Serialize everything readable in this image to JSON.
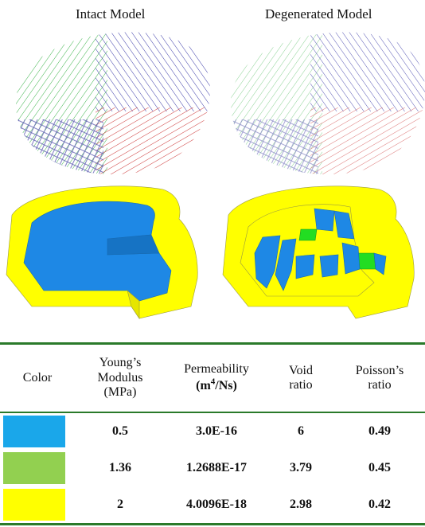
{
  "figure": {
    "left_caption": "Intact Model",
    "right_caption": "Degenerated Model"
  },
  "colors": {
    "fiber_green": "#3cb44b",
    "fiber_blue": "#3a3aa8",
    "fiber_red": "#cc3333",
    "nucleus_blue": "#1e88e5",
    "transition_green": "#22dd22",
    "annulus_yellow": "#ffff00"
  },
  "table": {
    "headers": {
      "color": "Color",
      "young_l1": "Young’s",
      "young_l2": "Modulus",
      "young_l3": "(MPa)",
      "perm_l1": "Permeability",
      "perm_unit_a": "(m",
      "perm_unit_sup": "4",
      "perm_unit_b": "/Ns)",
      "void_l1": "Void",
      "void_l2": "ratio",
      "poisson_l1": "Poisson’s",
      "poisson_l2": "ratio"
    },
    "rows": [
      {
        "swatch": "#1aa7ea",
        "young": "0.5",
        "perm": "3.0E-16",
        "void": "6",
        "poisson": "0.49"
      },
      {
        "swatch": "#92d050",
        "young": "1.36",
        "perm": "1.2688E-17",
        "void": "3.79",
        "poisson": "0.45"
      },
      {
        "swatch": "#ffff00",
        "young": "2",
        "perm": "4.0096E-18",
        "void": "2.98",
        "poisson": "0.42"
      }
    ]
  }
}
